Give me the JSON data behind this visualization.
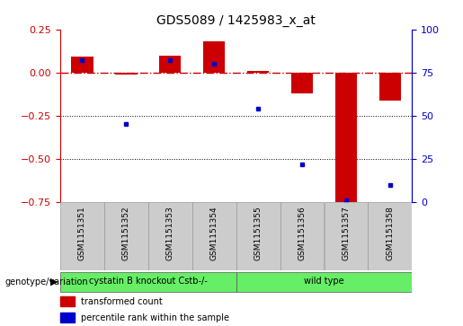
{
  "title": "GDS5089 / 1425983_x_at",
  "samples": [
    "GSM1151351",
    "GSM1151352",
    "GSM1151353",
    "GSM1151354",
    "GSM1151355",
    "GSM1151356",
    "GSM1151357",
    "GSM1151358"
  ],
  "red_values": [
    0.09,
    -0.01,
    0.1,
    0.18,
    0.01,
    -0.12,
    -0.78,
    -0.16
  ],
  "blue_values_pct": [
    82,
    45,
    82,
    80,
    54,
    22,
    1,
    10
  ],
  "ylim_left": [
    -0.75,
    0.25
  ],
  "ylim_right": [
    0,
    100
  ],
  "yticks_left": [
    0.25,
    0.0,
    -0.25,
    -0.5,
    -0.75
  ],
  "yticks_right": [
    100,
    75,
    50,
    25,
    0
  ],
  "hlines": [
    -0.25,
    -0.5
  ],
  "red_color": "#cc0000",
  "blue_color": "#0000cc",
  "bar_width": 0.5,
  "group1_label": "cystatin B knockout Cstb-/-",
  "group2_label": "wild type",
  "group1_indices": [
    0,
    1,
    2,
    3
  ],
  "group2_indices": [
    4,
    5,
    6,
    7
  ],
  "group_color": "#66ee66",
  "sample_box_color": "#cccccc",
  "genotype_label": "genotype/variation",
  "legend1": "transformed count",
  "legend2": "percentile rank within the sample",
  "tick_label_fontsize": 6.5,
  "right_axis_color": "#0000cc",
  "left_axis_color": "#cc0000",
  "title_fontsize": 10
}
